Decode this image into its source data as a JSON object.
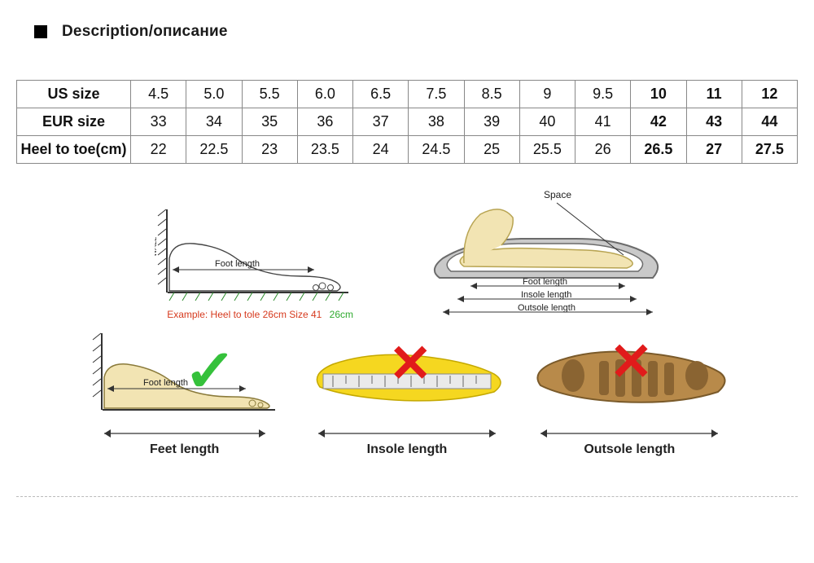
{
  "header": {
    "title": "Description/описание"
  },
  "table": {
    "rows": [
      {
        "label": "US size",
        "cells": [
          "4.5",
          "5.0",
          "5.5",
          "6.0",
          "6.5",
          "7.5",
          "8.5",
          "9",
          "9.5",
          "10",
          "11",
          "12"
        ]
      },
      {
        "label": "EUR size",
        "cells": [
          "33",
          "34",
          "35",
          "36",
          "37",
          "38",
          "39",
          "40",
          "41",
          "42",
          "43",
          "44"
        ]
      },
      {
        "label": "Heel to toe(cm)",
        "cells": [
          "22",
          "22.5",
          "23",
          "23.5",
          "24",
          "24.5",
          "25",
          "25.5",
          "26",
          "26.5",
          "27",
          "27.5"
        ]
      }
    ]
  },
  "diagrams": {
    "top_left": {
      "wall": "WALL",
      "foot_length": "Foot length",
      "example": "Example: Heel to tole 26cm Size 41",
      "example_cm": "26cm"
    },
    "top_right": {
      "space": "Space",
      "foot_length": "Foot length",
      "insole_length": "Insole length",
      "outsole_length": "Outsole length"
    },
    "bottom": {
      "feet": {
        "wall": "WALL",
        "foot_length": "Foot length",
        "caption": "Feet length"
      },
      "insole": {
        "caption": "Insole length"
      },
      "outsole": {
        "caption": "Outsole length"
      }
    }
  },
  "colors": {
    "border": "#888888",
    "example_red": "#d63a1e",
    "example_green": "#2faa2f",
    "check_green": "#35c13b",
    "x_red": "#e11b1b",
    "foot_fill": "#f2e4b3",
    "shoe_line": "#6b6b6b",
    "insole_yellow": "#f5d720",
    "outsole_brown": "#b88a4a"
  }
}
